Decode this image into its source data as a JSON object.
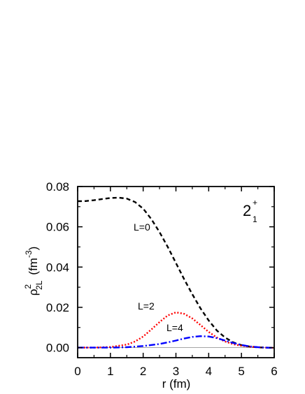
{
  "chart_data": {
    "type": "line",
    "title": "",
    "xlabel": "r (fm)",
    "ylabel_parts": {
      "rho": "ρ",
      "power": "2",
      "subscript": "2L",
      "unit": "(fm",
      "unit_power": "-3",
      "unit_close": ")"
    },
    "xlim": [
      0,
      6
    ],
    "ylim": [
      -0.005,
      0.08
    ],
    "x_ticks": [
      "0",
      "1",
      "2",
      "3",
      "4",
      "5",
      "6"
    ],
    "y_ticks": [
      "0.00",
      "0.02",
      "0.04",
      "0.06",
      "0.08"
    ],
    "grid": false,
    "state_label": {
      "base": "2",
      "sup": "+",
      "sub": "1"
    },
    "series": [
      {
        "label": "L=0",
        "color": "#000000",
        "style": "dashed",
        "x": [
          0,
          0.25,
          0.5,
          0.75,
          1.0,
          1.25,
          1.5,
          1.75,
          2.0,
          2.25,
          2.5,
          2.75,
          3.0,
          3.25,
          3.5,
          3.75,
          4.0,
          4.25,
          4.5,
          4.75,
          5.0,
          5.25,
          5.5,
          5.75,
          6.0
        ],
        "y": [
          0.0727,
          0.0728,
          0.0732,
          0.0738,
          0.0743,
          0.0745,
          0.074,
          0.0723,
          0.069,
          0.0638,
          0.0573,
          0.05,
          0.042,
          0.034,
          0.0265,
          0.0195,
          0.0135,
          0.0085,
          0.005,
          0.0026,
          0.0012,
          0.0005,
          0.0001,
          0.0,
          -0.0002
        ]
      },
      {
        "label": "L=2",
        "color": "#ff0000",
        "style": "dotted",
        "x": [
          0,
          0.5,
          1.0,
          1.5,
          1.75,
          2.0,
          2.25,
          2.5,
          2.75,
          3.0,
          3.25,
          3.5,
          3.75,
          4.0,
          4.25,
          4.5,
          4.75,
          5.0,
          5.25,
          5.5,
          5.75,
          6.0
        ],
        "y": [
          0.0,
          0.0,
          0.0003,
          0.0015,
          0.003,
          0.0055,
          0.009,
          0.0127,
          0.016,
          0.0175,
          0.0168,
          0.0145,
          0.0112,
          0.0078,
          0.005,
          0.003,
          0.0017,
          0.0009,
          0.0004,
          0.0002,
          0.0,
          -0.0001
        ]
      },
      {
        "label": "L=4",
        "color": "#0000ff",
        "style": "dash-dot",
        "x": [
          0,
          0.5,
          1.0,
          1.5,
          2.0,
          2.5,
          2.75,
          3.0,
          3.25,
          3.5,
          3.75,
          4.0,
          4.25,
          4.5,
          4.75,
          5.0,
          5.25,
          5.5,
          5.75,
          6.0
        ],
        "y": [
          0.0,
          0.0,
          0.0,
          0.0002,
          0.0008,
          0.0018,
          0.0026,
          0.0035,
          0.0045,
          0.0053,
          0.0057,
          0.0055,
          0.0047,
          0.0035,
          0.0023,
          0.0013,
          0.0006,
          0.0002,
          0.0,
          -0.0001
        ]
      }
    ]
  }
}
